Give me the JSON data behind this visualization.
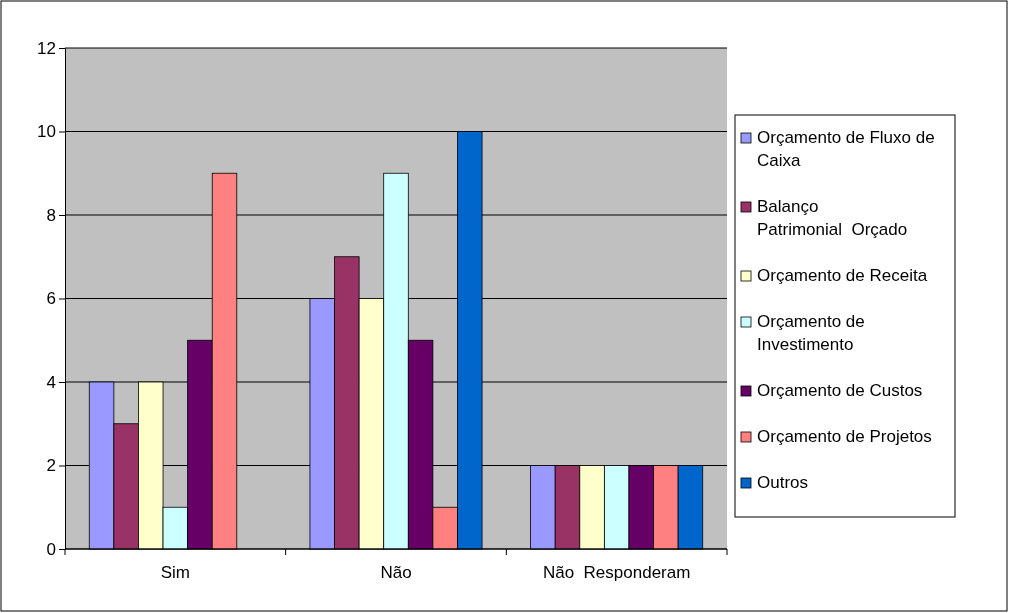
{
  "chart_data": {
    "type": "bar",
    "categories": [
      "Sim",
      "Não",
      "Não  Responderam"
    ],
    "series": [
      {
        "name": "Orçamento de Fluxo de Caixa",
        "color": "#9999ff",
        "values": [
          4,
          6,
          2
        ]
      },
      {
        "name": "Balanço Patrimonial  Orçado",
        "color": "#993366",
        "values": [
          3,
          7,
          2
        ]
      },
      {
        "name": "Orçamento de Receita",
        "color": "#ffffcc",
        "values": [
          4,
          6,
          2
        ]
      },
      {
        "name": "Orçamento de Investimento",
        "color": "#ccffff",
        "values": [
          1,
          9,
          2
        ]
      },
      {
        "name": "Orçamento de Custos",
        "color": "#660066",
        "values": [
          5,
          5,
          2
        ]
      },
      {
        "name": "Orçamento de Projetos",
        "color": "#ff8080",
        "values": [
          9,
          1,
          2
        ]
      },
      {
        "name": "Outros",
        "color": "#0066cc",
        "values": [
          0,
          10,
          2
        ]
      }
    ],
    "ylim": [
      0,
      12
    ],
    "yticks": [
      0,
      2,
      4,
      6,
      8,
      10,
      12
    ],
    "grid": "y",
    "legend": "right"
  }
}
